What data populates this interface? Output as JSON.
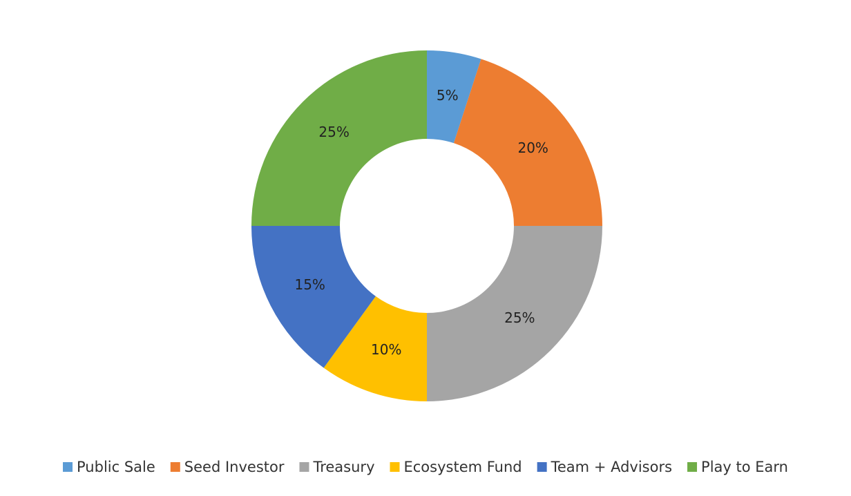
{
  "chart_data": {
    "type": "donut",
    "categories": [
      "Public Sale",
      "Seed Investor",
      "Treasury",
      "Ecosystem Fund",
      "Team + Advisors",
      "Play to Earn"
    ],
    "values": [
      5,
      20,
      25,
      10,
      15,
      25
    ],
    "value_labels": [
      "5%",
      "20%",
      "25%",
      "10%",
      "15%",
      "25%"
    ],
    "colors": [
      "#5b9bd5",
      "#ed7d31",
      "#a5a5a5",
      "#ffc000",
      "#4472c4",
      "#70ad47"
    ],
    "legend": "bottom"
  }
}
